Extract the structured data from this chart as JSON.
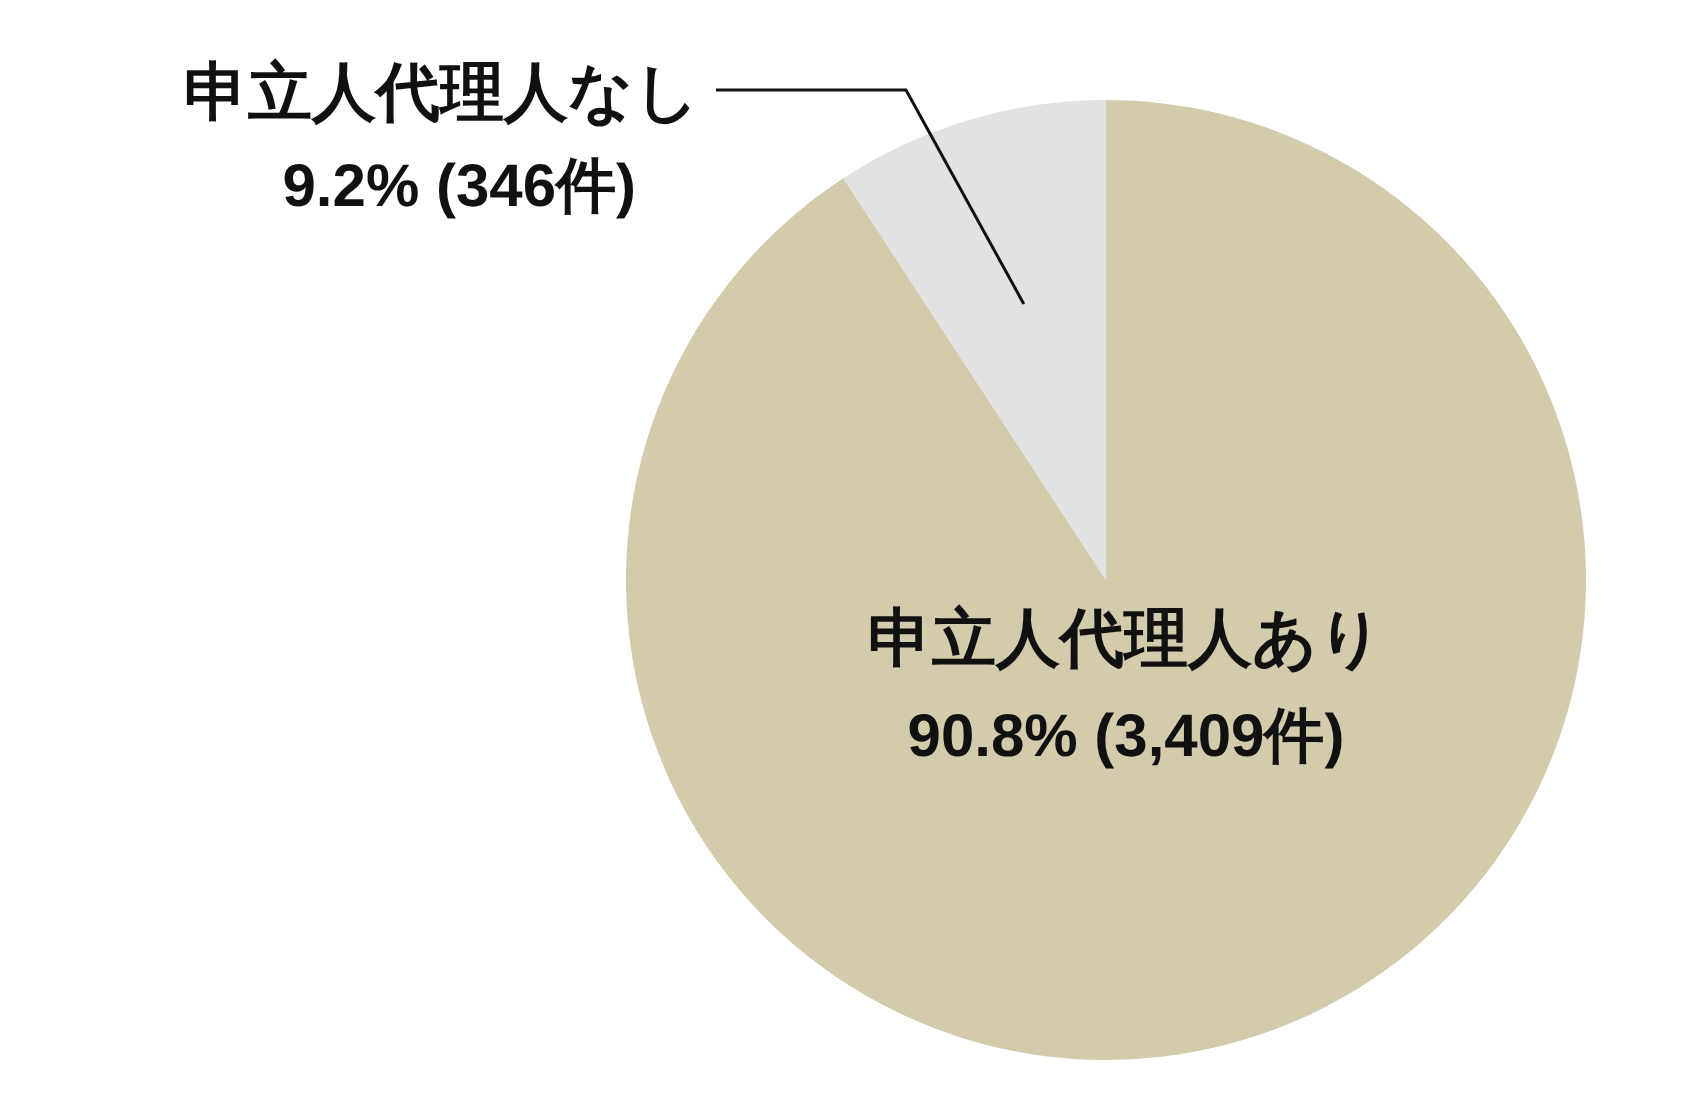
{
  "chart_data": {
    "type": "pie",
    "categories": [
      "申立人代理人あり",
      "申立人代理人なし"
    ],
    "values": [
      3409,
      346
    ],
    "colors": [
      "#d3cbab",
      "#e2e2e2"
    ],
    "value_labels": [
      "90.8% (3,409件)",
      "9.2% (346件)"
    ]
  }
}
